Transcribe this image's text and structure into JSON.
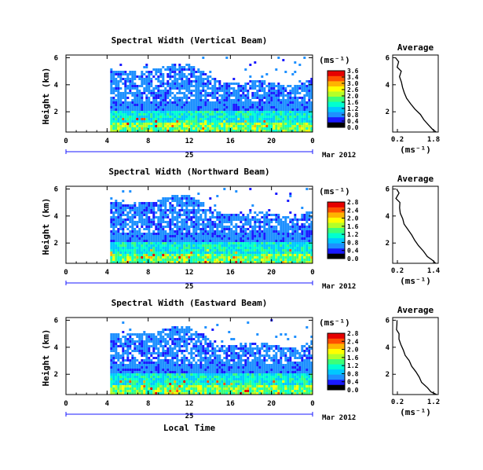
{
  "chart_data": [
    {
      "type": "heatmap",
      "title": "Spectral Width (Vertical Beam)",
      "ylabel": "Height (km)",
      "xticks": [
        "0",
        "4",
        "8",
        "12",
        "16",
        "20",
        "0"
      ],
      "yticks": [
        "2",
        "4",
        "6"
      ],
      "xlim": [
        0,
        24
      ],
      "ylim": [
        0.5,
        6.2
      ],
      "date_day": "25",
      "date_month_year": "Mar 2012",
      "colorbar": {
        "unit": "(ms⁻¹)",
        "ticks": [
          "3.6",
          "3.4",
          "3.0",
          "2.6",
          "2.0",
          "1.6",
          "1.2",
          "0.8",
          "0.4",
          "0.0"
        ],
        "range": [
          0,
          3.6
        ]
      },
      "data_start_hour": 4.3,
      "profile": {
        "title": "Average",
        "xlabel": "(ms⁻¹)",
        "xticks": [
          "0.2",
          "1.8"
        ],
        "xlim": [
          0.2,
          1.8
        ],
        "height_km": [
          6.0,
          5.7,
          5.3,
          5.0,
          4.6,
          4.2,
          3.8,
          3.4,
          3.0,
          2.6,
          2.2,
          1.8,
          1.4,
          1.0,
          0.7,
          0.5
        ],
        "values": [
          0.3,
          0.4,
          0.35,
          0.5,
          0.45,
          0.5,
          0.55,
          0.6,
          0.7,
          0.85,
          1.0,
          1.15,
          1.3,
          1.45,
          1.6,
          1.75
        ]
      }
    },
    {
      "type": "heatmap",
      "title": "Spectral Width (Northward Beam)",
      "ylabel": "Height (km)",
      "xticks": [
        "0",
        "4",
        "8",
        "12",
        "16",
        "20",
        "0"
      ],
      "yticks": [
        "2",
        "4",
        "6"
      ],
      "xlim": [
        0,
        24
      ],
      "ylim": [
        0.5,
        6.2
      ],
      "date_day": "25",
      "date_month_year": "Mar 2012",
      "colorbar": {
        "unit": "(ms⁻¹)",
        "ticks": [
          "2.8",
          "2.4",
          "2.0",
          "1.6",
          "1.2",
          "0.8",
          "0.4",
          "0.0"
        ],
        "range": [
          0,
          2.8
        ]
      },
      "data_start_hour": 4.3,
      "profile": {
        "title": "Average",
        "xlabel": "(ms⁻¹)",
        "xticks": [
          "0.2",
          "1.4"
        ],
        "xlim": [
          0.2,
          1.4
        ],
        "height_km": [
          6.0,
          5.7,
          5.3,
          5.0,
          4.6,
          4.2,
          3.8,
          3.4,
          3.0,
          2.6,
          2.2,
          1.8,
          1.4,
          1.0,
          0.7,
          0.5
        ],
        "values": [
          0.3,
          0.35,
          0.3,
          0.4,
          0.38,
          0.42,
          0.45,
          0.5,
          0.6,
          0.7,
          0.8,
          0.9,
          1.0,
          1.1,
          1.25,
          1.35
        ]
      }
    },
    {
      "type": "heatmap",
      "title": "Spectral Width (Eastward Beam)",
      "ylabel": "Height (km)",
      "xticks": [
        "0",
        "4",
        "8",
        "12",
        "16",
        "20",
        "0"
      ],
      "yticks": [
        "2",
        "4",
        "6"
      ],
      "xlim": [
        0,
        24
      ],
      "ylim": [
        0.5,
        6.2
      ],
      "date_day": "25",
      "date_month_year": "Mar 2012",
      "xlabel": "Local Time",
      "colorbar": {
        "unit": "(ms⁻¹)",
        "ticks": [
          "2.8",
          "2.4",
          "2.0",
          "1.6",
          "1.2",
          "0.8",
          "0.4",
          "0.0"
        ],
        "range": [
          0,
          2.8
        ]
      },
      "data_start_hour": 4.3,
      "profile": {
        "title": "Average",
        "xlabel": "(ms⁻¹)",
        "xticks": [
          "0.2",
          "1.2"
        ],
        "xlim": [
          0.2,
          1.2
        ],
        "height_km": [
          6.0,
          5.7,
          5.3,
          5.0,
          4.6,
          4.2,
          3.8,
          3.4,
          3.0,
          2.6,
          2.2,
          1.8,
          1.4,
          1.0,
          0.7,
          0.5
        ],
        "values": [
          0.28,
          0.3,
          0.28,
          0.33,
          0.35,
          0.38,
          0.42,
          0.48,
          0.55,
          0.62,
          0.7,
          0.78,
          0.85,
          0.95,
          1.05,
          1.15
        ]
      }
    }
  ],
  "colors": {
    "scale": [
      "#000000",
      "#1a1aff",
      "#1e90ff",
      "#00c8ff",
      "#00ffd0",
      "#3cff78",
      "#b4ff28",
      "#ffff00",
      "#ffb400",
      "#ff5000",
      "#e60000"
    ],
    "missing": "#ffffff",
    "axis": "#000000",
    "date_line": "#1a1aff"
  }
}
